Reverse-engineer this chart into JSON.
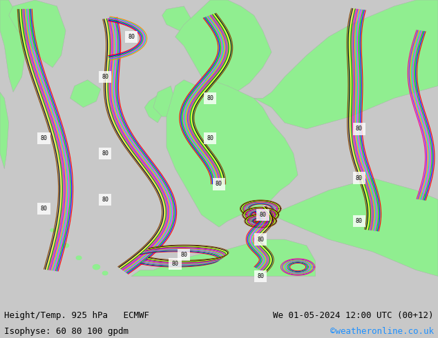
{
  "figsize": [
    6.34,
    4.9
  ],
  "dpi": 100,
  "bg_color": "#c8c8c8",
  "sea_color": "#d3d3d3",
  "land_color": "#90ee90",
  "bottom_bar_color": "#c8c8c8",
  "title_left": "Height/Temp. 925 hPa   ECMWF",
  "title_right": "We 01-05-2024 12:00 UTC (00+12)",
  "subtitle_left": "Isophyse: 60 80 100 gpdm",
  "subtitle_right": "©weatheronline.co.uk",
  "subtitle_right_color": "#1e90ff",
  "text_color": "#000000",
  "font_size_title": 9,
  "font_size_subtitle": 9,
  "font_family": "monospace",
  "line_colors": [
    "#ff0000",
    "#0000ff",
    "#00cc00",
    "#ff00ff",
    "#00cccc",
    "#ff8800",
    "#8800ff",
    "#ff0088",
    "#008800",
    "#ffff00",
    "#000000",
    "#884400"
  ],
  "line_width": 0.8
}
